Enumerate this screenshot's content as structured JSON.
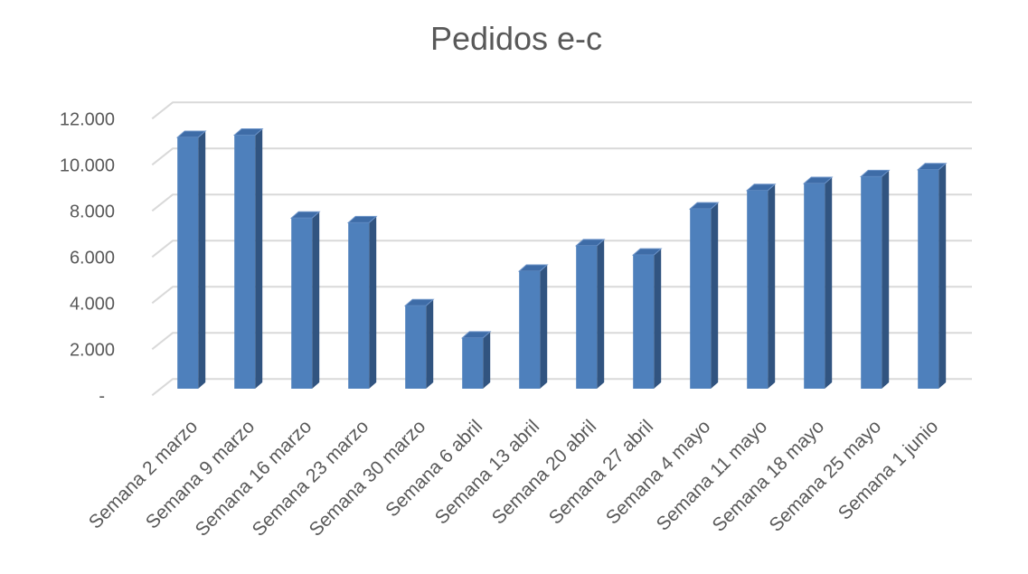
{
  "chart_data": {
    "type": "bar",
    "variant": "3d-column",
    "title": "Pedidos e-c",
    "xlabel": "",
    "ylabel": "",
    "categories": [
      "Semana 2 marzo",
      "Semana 9 marzo",
      "Semana 16 marzo",
      "Semana 23 marzo",
      "Semana 30 marzo",
      "Semana 6 abril",
      "Semana 13 abril",
      "Semana 20 abril",
      "Semana 27 abril",
      "Semana 4 mayo",
      "Semana 11 mayo",
      "Semana 18 mayo",
      "Semana 25 mayo",
      "Semana 1 junio"
    ],
    "values": [
      10900,
      11000,
      7400,
      7200,
      3600,
      2200,
      5100,
      6200,
      5800,
      7800,
      8600,
      8900,
      9200,
      9500
    ],
    "ylim": [
      0,
      12000
    ],
    "ytick_step": 2000,
    "ytick_labels": [
      "-",
      "2.000",
      "4.000",
      "6.000",
      "8.000",
      "10.000",
      "12.000"
    ],
    "grid": true,
    "legend": "none",
    "colors": {
      "bar_front": "#4e80bc",
      "bar_top": "#3e6ca7",
      "bar_top_bevel": "#6d94c9",
      "bar_side": "#315480",
      "gridline": "#d9d9d9",
      "text": "#595959",
      "background": "#ffffff"
    }
  }
}
